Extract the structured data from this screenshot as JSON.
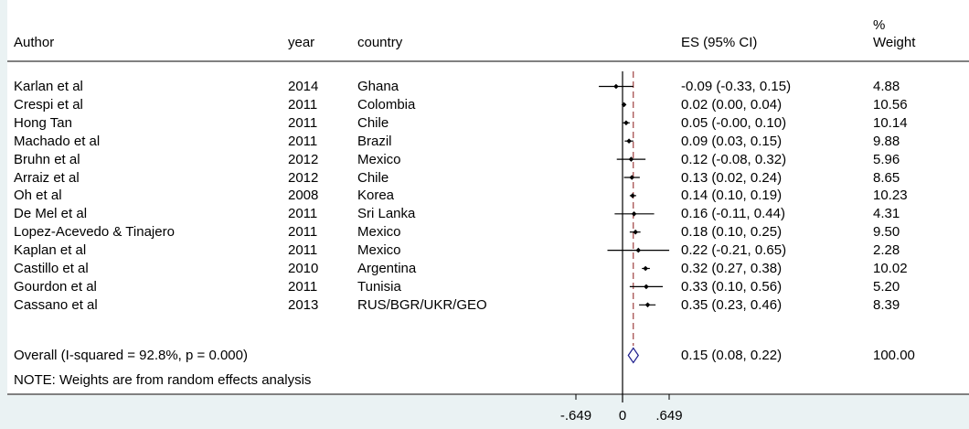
{
  "chart_data": {
    "type": "forest",
    "columns": {
      "author": "Author",
      "year": "year",
      "country": "country",
      "es": "ES (95% CI)",
      "weight_line1": "%",
      "weight_line2": "Weight"
    },
    "studies": [
      {
        "author": "Karlan et al",
        "year": "2014",
        "country": "Ghana",
        "es": -0.09,
        "lo": -0.33,
        "hi": 0.15,
        "es_label": "-0.09 (-0.33, 0.15)",
        "weight": "4.88"
      },
      {
        "author": "Crespi et al",
        "year": "2011",
        "country": "Colombia",
        "es": 0.02,
        "lo": 0.0,
        "hi": 0.04,
        "es_label": "0.02 (0.00, 0.04)",
        "weight": "10.56"
      },
      {
        "author": "Hong Tan",
        "year": "2011",
        "country": "Chile",
        "es": 0.05,
        "lo": -0.0,
        "hi": 0.1,
        "es_label": "0.05 (-0.00, 0.10)",
        "weight": "10.14"
      },
      {
        "author": "Machado et al",
        "year": "2011",
        "country": "Brazil",
        "es": 0.09,
        "lo": 0.03,
        "hi": 0.15,
        "es_label": "0.09 (0.03, 0.15)",
        "weight": "9.88"
      },
      {
        "author": "Bruhn et al",
        "year": "2012",
        "country": "Mexico",
        "es": 0.12,
        "lo": -0.08,
        "hi": 0.32,
        "es_label": "0.12 (-0.08, 0.32)",
        "weight": "5.96"
      },
      {
        "author": "Arraiz et al",
        "year": "2012",
        "country": "Chile",
        "es": 0.13,
        "lo": 0.02,
        "hi": 0.24,
        "es_label": "0.13 (0.02, 0.24)",
        "weight": "8.65"
      },
      {
        "author": "Oh et al",
        "year": "2008",
        "country": "Korea",
        "es": 0.14,
        "lo": 0.1,
        "hi": 0.19,
        "es_label": "0.14 (0.10, 0.19)",
        "weight": "10.23"
      },
      {
        "author": "De Mel et al",
        "year": "2011",
        "country": "Sri Lanka",
        "es": 0.16,
        "lo": -0.11,
        "hi": 0.44,
        "es_label": "0.16 (-0.11, 0.44)",
        "weight": "4.31"
      },
      {
        "author": "Lopez-Acevedo & Tinajero",
        "year": "2011",
        "country": "Mexico",
        "es": 0.18,
        "lo": 0.1,
        "hi": 0.25,
        "es_label": "0.18 (0.10, 0.25)",
        "weight": "9.50"
      },
      {
        "author": "Kaplan et al",
        "year": "2011",
        "country": "Mexico",
        "es": 0.22,
        "lo": -0.21,
        "hi": 0.65,
        "es_label": "0.22 (-0.21, 0.65)",
        "weight": "2.28"
      },
      {
        "author": "Castillo et al",
        "year": "2010",
        "country": "Argentina",
        "es": 0.32,
        "lo": 0.27,
        "hi": 0.38,
        "es_label": "0.32 (0.27, 0.38)",
        "weight": "10.02"
      },
      {
        "author": "Gourdon et al",
        "year": "2011",
        "country": "Tunisia",
        "es": 0.33,
        "lo": 0.1,
        "hi": 0.56,
        "es_label": "0.33 (0.10, 0.56)",
        "weight": "5.20"
      },
      {
        "author": "Cassano et al",
        "year": "2013",
        "country": "RUS/BGR/UKR/GEO",
        "es": 0.35,
        "lo": 0.23,
        "hi": 0.46,
        "es_label": "0.35 (0.23, 0.46)",
        "weight": "8.39"
      }
    ],
    "overall": {
      "label": "Overall  (I-squared = 92.8%, p = 0.000)",
      "es": 0.15,
      "lo": 0.08,
      "hi": 0.22,
      "es_label": "0.15 (0.08, 0.22)",
      "weight": "100.00"
    },
    "note": "NOTE: Weights are from random effects analysis",
    "x_ticks": [
      {
        "value": -0.649,
        "label": "-.649"
      },
      {
        "value": 0,
        "label": "0"
      },
      {
        "value": 0.649,
        "label": ".649"
      }
    ],
    "xlim": [
      -0.649,
      0.649
    ],
    "reference_line_value": 0,
    "colors": {
      "background": "#eaf2f3",
      "panel": "#ffffff",
      "overall_line": "#8b1a1a",
      "diamond": "#1c1c8c",
      "line": "#000000"
    }
  }
}
